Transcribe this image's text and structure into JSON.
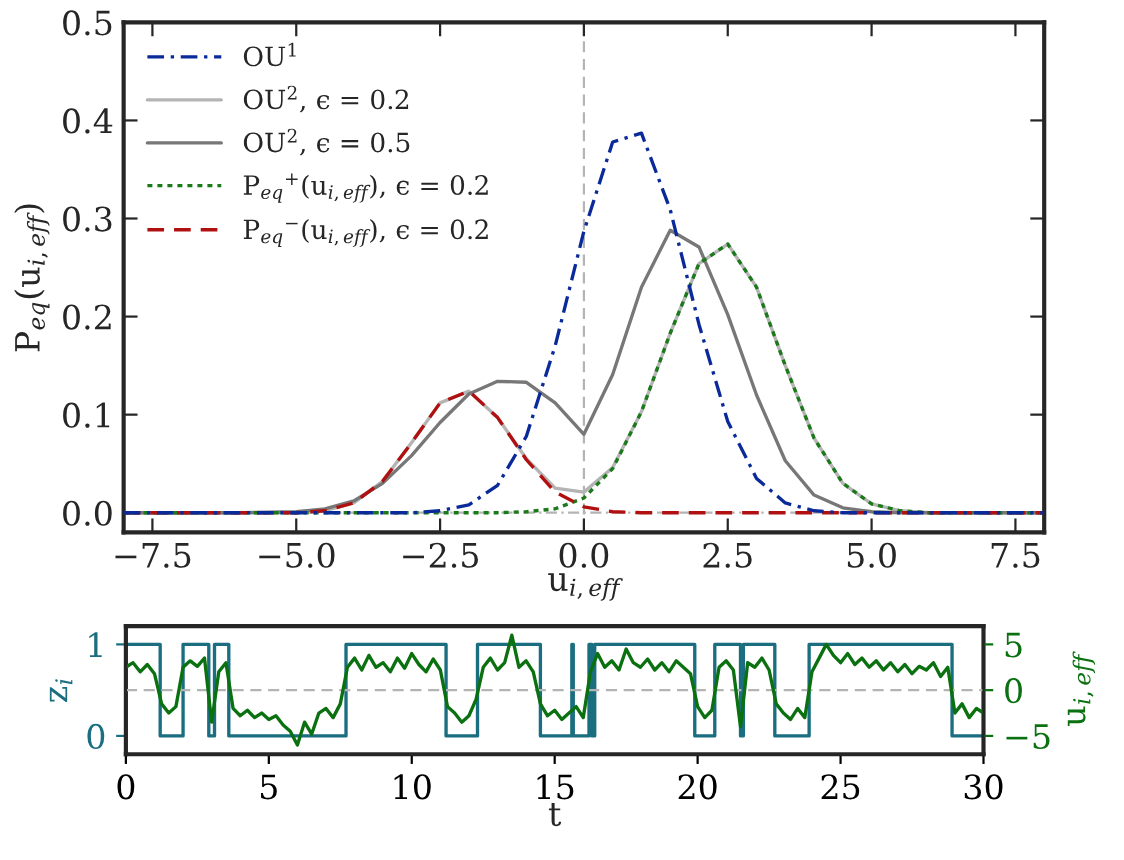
{
  "chart_data": [
    {
      "type": "line",
      "xlabel": "u$_{i,eff}$",
      "ylabel": "P$_{eq}$(u$_{i,eff}$)",
      "xlim": [
        -8,
        8
      ],
      "ylim": [
        -0.02,
        0.5
      ],
      "xticks": [
        {
          "value": -7.5,
          "label": "−7.5"
        },
        {
          "value": -5,
          "label": "−5.0"
        },
        {
          "value": -2.5,
          "label": "−2.5"
        },
        {
          "value": 0,
          "label": "0.0"
        },
        {
          "value": 2.5,
          "label": "2.5"
        },
        {
          "value": 5,
          "label": "5.0"
        },
        {
          "value": 7.5,
          "label": "7.5"
        }
      ],
      "yticks": [
        {
          "value": 0,
          "label": "0.0"
        },
        {
          "value": 0.1,
          "label": "0.1"
        },
        {
          "value": 0.2,
          "label": "0.2"
        },
        {
          "value": 0.3,
          "label": "0.3"
        },
        {
          "value": 0.4,
          "label": "0.4"
        },
        {
          "value": 0.5,
          "label": "0.5"
        }
      ],
      "x": [
        -8,
        -6,
        -5,
        -4.5,
        -4,
        -3.5,
        -3,
        -2.5,
        -2,
        -1.5,
        -1,
        -0.5,
        0,
        0.5,
        1,
        1.5,
        2,
        2.5,
        3,
        3.5,
        4,
        4.5,
        5,
        5.5,
        6,
        7,
        8
      ],
      "series": [
        {
          "name": "OU$^{1}$",
          "color": "#0a2a9a",
          "line_style": "dashdot",
          "values": [
            0,
            0,
            0,
            0,
            0,
            0,
            0,
            0.002,
            0.008,
            0.028,
            0.078,
            0.17,
            0.287,
            0.378,
            0.387,
            0.309,
            0.192,
            0.093,
            0.035,
            0.01,
            0.002,
            0,
            0,
            0,
            0,
            0,
            0
          ]
        },
        {
          "name": "OU$^{2}$, ϵ = 0.2",
          "color": "#b4b4b4",
          "line_style": "solid",
          "values": [
            0,
            0,
            0,
            0.002,
            0.01,
            0.032,
            0.071,
            0.112,
            0.124,
            0.097,
            0.055,
            0.025,
            0.021,
            0.046,
            0.103,
            0.183,
            0.254,
            0.274,
            0.23,
            0.15,
            0.076,
            0.03,
            0.009,
            0.002,
            0,
            0,
            0
          ]
        },
        {
          "name": "OU$^{2}$, ϵ = 0.5",
          "color": "#777777",
          "line_style": "solid",
          "values": [
            0,
            0,
            0.001,
            0.004,
            0.012,
            0.03,
            0.058,
            0.092,
            0.121,
            0.134,
            0.133,
            0.112,
            0.08,
            0.141,
            0.23,
            0.288,
            0.271,
            0.202,
            0.12,
            0.053,
            0.018,
            0.005,
            0.001,
            0,
            0,
            0,
            0
          ]
        },
        {
          "name": "P$_{eq}$$^{+}$(u$_{i,eff}$), ϵ = 0.2",
          "color": "#1a7a1a",
          "line_style": "dotted",
          "values": [
            0,
            0,
            0,
            0,
            0,
            0,
            0,
            0,
            0,
            0,
            0.001,
            0.004,
            0.015,
            0.045,
            0.103,
            0.183,
            0.254,
            0.274,
            0.23,
            0.15,
            0.076,
            0.03,
            0.009,
            0.002,
            0,
            0,
            0
          ]
        },
        {
          "name": "P$_{eq}$$^{−}$(u$_{i,eff}$), ϵ = 0.2",
          "color": "#b01010",
          "line_style": "dashed",
          "values": [
            0,
            0,
            0,
            0.002,
            0.01,
            0.032,
            0.071,
            0.112,
            0.124,
            0.097,
            0.054,
            0.021,
            0.006,
            0.001,
            0,
            0,
            0,
            0,
            0,
            0,
            0,
            0,
            0,
            0,
            0,
            0,
            0
          ]
        }
      ],
      "ref_lines": [
        {
          "axis": "x",
          "value": 0,
          "color": "#b4b4b4",
          "line_style": "dashed"
        },
        {
          "axis": "y",
          "value": 0,
          "color": "#b4b4b4",
          "line_style": "dashdot"
        }
      ],
      "legend": "top left",
      "grid": false
    },
    {
      "type": "line",
      "xlabel": "t",
      "ylabel": "z$_{i}$",
      "y2label": "u$_{i,eff}$",
      "xlim": [
        0,
        30
      ],
      "xticks": [
        0,
        5,
        10,
        15,
        20,
        25,
        30
      ],
      "ylim": [
        -0.2,
        1.2
      ],
      "yticks": [
        0,
        1
      ],
      "y2lim": [
        -7,
        7
      ],
      "y2ticks": [
        {
          "value": -5,
          "label": "−5"
        },
        0,
        5
      ],
      "series": [
        {
          "type": "step",
          "color": "#1a6e80",
          "x": [
            0,
            1.2,
            2.0,
            2.9,
            3.1,
            3.6,
            7.7,
            11.2,
            12.3,
            14.5,
            15.6,
            15.65,
            16.2,
            16.3,
            16.4,
            19.9,
            20.6,
            21.5,
            21.6,
            22.7,
            23.9,
            28.9,
            30
          ],
          "values": [
            1,
            0,
            1,
            0,
            1,
            0,
            1,
            0,
            1,
            0,
            1,
            0,
            1,
            0,
            1,
            0,
            1,
            0,
            1,
            0,
            1,
            0,
            0
          ]
        },
        {
          "type": "line",
          "axis": "y2",
          "color": "#0a7010",
          "x": [
            0,
            0.25,
            0.5,
            0.75,
            1,
            1.25,
            1.5,
            1.75,
            2,
            2.25,
            2.5,
            2.75,
            3,
            3.25,
            3.5,
            3.75,
            4,
            4.25,
            4.5,
            4.75,
            5,
            5.25,
            5.5,
            5.75,
            6,
            6.25,
            6.5,
            6.75,
            7,
            7.25,
            7.5,
            7.75,
            8,
            8.25,
            8.5,
            8.75,
            9,
            9.25,
            9.5,
            9.75,
            10,
            10.25,
            10.5,
            10.75,
            11,
            11.25,
            11.5,
            11.75,
            12,
            12.25,
            12.5,
            12.75,
            13,
            13.25,
            13.5,
            13.75,
            14,
            14.25,
            14.5,
            14.75,
            15,
            15.25,
            15.5,
            15.75,
            16,
            16.25,
            16.5,
            16.75,
            17,
            17.25,
            17.5,
            17.75,
            18,
            18.25,
            18.5,
            18.75,
            19,
            19.25,
            19.5,
            19.75,
            20,
            20.25,
            20.5,
            20.75,
            21,
            21.25,
            21.5,
            21.75,
            22,
            22.25,
            22.5,
            22.75,
            23,
            23.25,
            23.5,
            23.75,
            24,
            24.25,
            24.5,
            24.75,
            25,
            25.25,
            25.5,
            25.75,
            26,
            26.25,
            26.5,
            26.75,
            27,
            27.25,
            27.5,
            27.75,
            28,
            28.25,
            28.5,
            28.75,
            29,
            29.25,
            29.5,
            29.75,
            30
          ],
          "values": [
            2.5,
            3,
            2,
            2.8,
            1.8,
            -1.5,
            -2.5,
            -1.8,
            2.5,
            3.2,
            2.6,
            3.5,
            -3.5,
            2,
            3,
            -2,
            -2.8,
            -2.2,
            -3,
            -2.5,
            -3.2,
            -2.8,
            -3.8,
            -4.5,
            -6,
            -3.5,
            -4.8,
            -2.5,
            -2,
            -3,
            -1.5,
            2.5,
            3.5,
            2.2,
            3.8,
            2.5,
            3,
            2,
            3.5,
            2.4,
            4,
            2.8,
            2,
            3.4,
            2.2,
            -1.8,
            -2.5,
            -3.5,
            -2.8,
            -1,
            2.5,
            3.5,
            2.2,
            3,
            6,
            2.5,
            3.2,
            2,
            -1.5,
            -2.8,
            -2.2,
            -3.2,
            -2.5,
            -1.8,
            -3,
            2,
            4,
            2.5,
            3.2,
            2.2,
            4.5,
            3,
            2.5,
            3.4,
            2.2,
            3,
            2,
            3.2,
            2.5,
            1.8,
            -1.8,
            -3,
            -2.2,
            2.5,
            3.2,
            2.2,
            -4,
            3,
            2.5,
            3.5,
            2.2,
            -1.5,
            -2.5,
            -3.2,
            -2,
            -3,
            2,
            3.5,
            5,
            3.8,
            3,
            4,
            2.8,
            3.5,
            2.5,
            3.2,
            2.2,
            3,
            2,
            2.8,
            1.8,
            2.6,
            2.2,
            3,
            1.5,
            2.5,
            -2.5,
            -1.5,
            -3,
            -2,
            -2.5
          ]
        }
      ],
      "ref_lines": [
        {
          "axis": "y2",
          "value": 0,
          "color": "#b4b4b4",
          "line_style": "dashed"
        }
      ],
      "grid": false
    }
  ]
}
